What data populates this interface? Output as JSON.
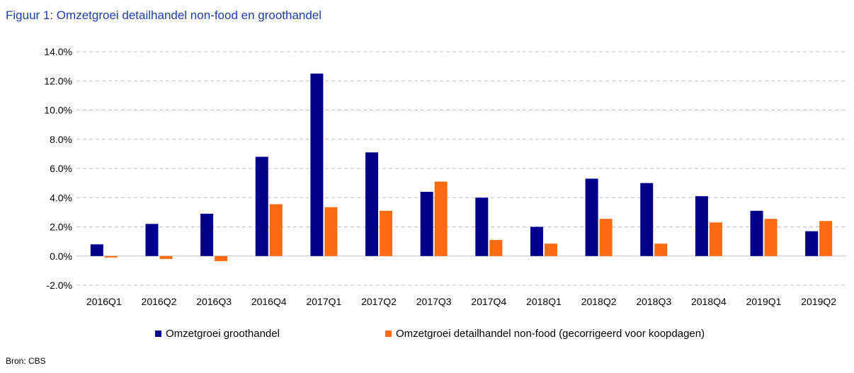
{
  "page": {
    "title": "Figuur 1: Omzetgroei detailhandel non-food en groothandel",
    "source": "Bron: CBS"
  },
  "chart_data": {
    "type": "bar",
    "title": "Figuur 1: Omzetgroei detailhandel non-food en groothandel",
    "xlabel": "",
    "ylabel": "",
    "categories": [
      "2016Q1",
      "2016Q2",
      "2016Q3",
      "2016Q4",
      "2017Q1",
      "2017Q2",
      "2017Q3",
      "2017Q4",
      "2018Q1",
      "2018Q2",
      "2018Q3",
      "2018Q4",
      "2019Q1",
      "2019Q2"
    ],
    "series": [
      {
        "name": "Omzetgroei groothandel",
        "color": "#00008b",
        "values": [
          0.8,
          2.2,
          2.9,
          6.8,
          12.5,
          7.1,
          4.4,
          4.0,
          2.0,
          5.3,
          5.0,
          4.1,
          3.1,
          1.7
        ]
      },
      {
        "name": "Omzetgroei detailhandel non-food (gecorrigeerd voor koopdagen)",
        "color": "#ff6a13",
        "values": [
          -0.1,
          -0.2,
          -0.35,
          3.55,
          3.35,
          3.1,
          5.1,
          1.1,
          0.85,
          2.55,
          0.85,
          2.3,
          2.55,
          2.4
        ]
      }
    ],
    "yticks": [
      "-2.0%",
      "0.0%",
      "2.0%",
      "4.0%",
      "6.0%",
      "8.0%",
      "10.0%",
      "12.0%",
      "14.0%"
    ],
    "ylim": [
      -2,
      14
    ],
    "grid": true,
    "legend_position": "bottom"
  }
}
